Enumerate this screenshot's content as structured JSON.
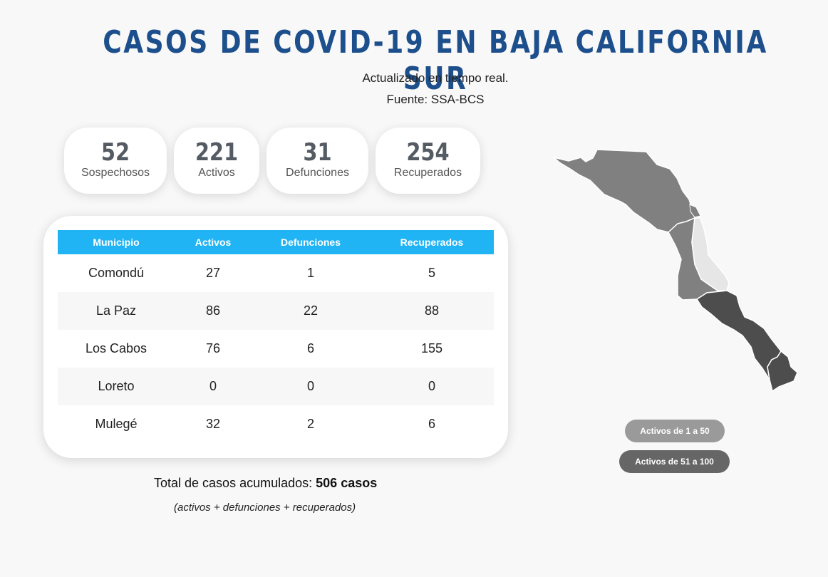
{
  "header": {
    "title": "CASOS DE COVID-19 EN BAJA CALIFORNIA SUR",
    "subtitle": "Actualizado en tiempo real.",
    "source": "Fuente: SSA-BCS"
  },
  "stats": [
    {
      "value": "52",
      "label": "Sospechosos"
    },
    {
      "value": "221",
      "label": "Activos"
    },
    {
      "value": "31",
      "label": "Defunciones"
    },
    {
      "value": "254",
      "label": "Recuperados"
    }
  ],
  "table": {
    "headers": [
      "Municipio",
      "Activos",
      "Defunciones",
      "Recuperados"
    ],
    "rows": [
      [
        "Comondú",
        "27",
        "1",
        "5"
      ],
      [
        "La Paz",
        "86",
        "22",
        "88"
      ],
      [
        "Los Cabos",
        "76",
        "6",
        "155"
      ],
      [
        "Loreto",
        "0",
        "0",
        "0"
      ],
      [
        "Mulegé",
        "32",
        "2",
        "6"
      ]
    ]
  },
  "summary": {
    "total_label": "Total de casos acumulados:",
    "total_value": "506 casos",
    "note": "(activos + defunciones + recuperados)"
  },
  "map": {
    "regions": [
      {
        "name": "Mulegé",
        "color": "#808080"
      },
      {
        "name": "Comondú",
        "color": "#808080"
      },
      {
        "name": "Loreto",
        "color": "#e6e6e6"
      },
      {
        "name": "La Paz",
        "color": "#4d4d4d"
      },
      {
        "name": "Los Cabos",
        "color": "#4d4d4d"
      }
    ]
  },
  "legend": [
    {
      "label": "Activos de 1 a 50",
      "color": "#9a9a9a"
    },
    {
      "label": "Activos de 51 a 100",
      "color": "#666666"
    }
  ]
}
